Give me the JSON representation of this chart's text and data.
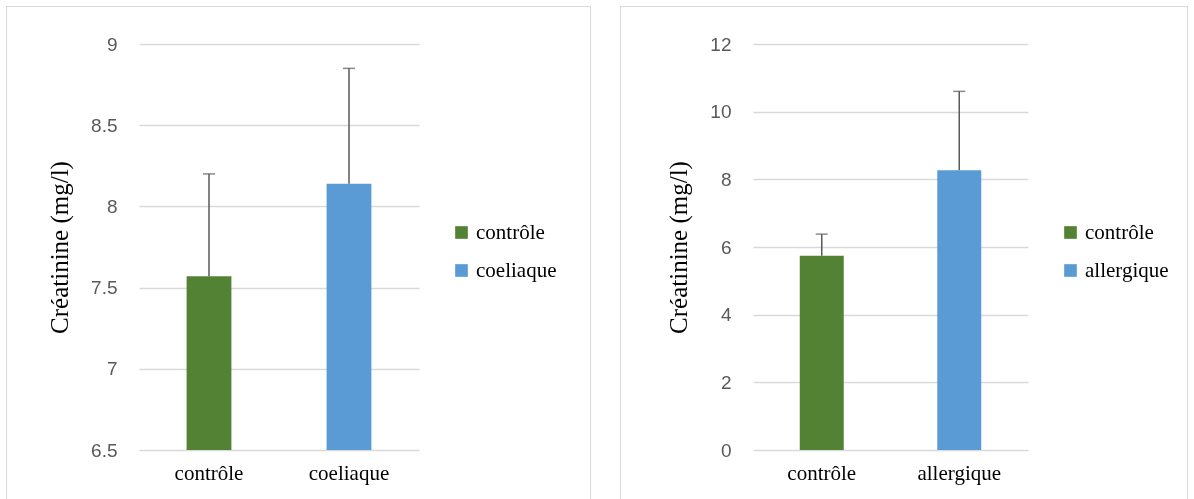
{
  "chart_data": [
    {
      "type": "bar",
      "categories": [
        "contrôle",
        "coeliaque"
      ],
      "stacked": true,
      "series": [
        {
          "name": "contrôle",
          "color": "#548235",
          "values": [
            7.57,
            null
          ],
          "errors": [
            [
              7.57,
              8.2
            ],
            null
          ]
        },
        {
          "name": "coeliaque",
          "color": "#5b9bd5",
          "values": [
            null,
            8.14
          ],
          "errors": [
            null,
            [
              8.14,
              8.85
            ]
          ]
        }
      ],
      "ylabel": "Créatinine (mg/l)",
      "ylim": [
        6.5,
        9
      ],
      "yticks": [
        6.5,
        7,
        7.5,
        8,
        8.5,
        9
      ],
      "grid": "y",
      "legend": "right"
    },
    {
      "type": "bar",
      "categories": [
        "contrôle",
        "allergique"
      ],
      "stacked": true,
      "series": [
        {
          "name": "contrôle",
          "color": "#548235",
          "values": [
            5.74,
            null
          ],
          "errors": [
            [
              5.74,
              6.38
            ],
            null
          ]
        },
        {
          "name": "allergique",
          "color": "#5b9bd5",
          "values": [
            null,
            8.27
          ],
          "errors": [
            null,
            [
              8.27,
              10.6
            ]
          ]
        }
      ],
      "ylabel": "Créatinine (mg/l)",
      "ylim": [
        0,
        12
      ],
      "yticks": [
        0,
        2,
        4,
        6,
        8,
        10,
        12
      ],
      "grid": "y",
      "legend": "right"
    }
  ]
}
